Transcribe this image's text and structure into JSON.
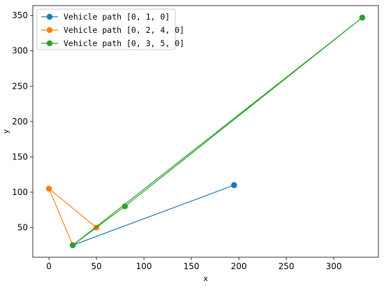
{
  "chart_data": {
    "type": "line",
    "title": "",
    "xlabel": "x",
    "ylabel": "y",
    "xlim": [
      -17,
      347
    ],
    "ylim": [
      8,
      364
    ],
    "xticks": [
      0,
      50,
      100,
      150,
      200,
      250,
      300
    ],
    "yticks": [
      50,
      100,
      150,
      200,
      250,
      300,
      350
    ],
    "grid": false,
    "legend_position": "top-left",
    "series": [
      {
        "name": "Vehicle path [0, 1, 0]",
        "color": "#1f77b4",
        "points": [
          [
            195,
            110
          ],
          [
            25,
            25
          ],
          [
            195,
            110
          ]
        ]
      },
      {
        "name": "Vehicle path [0, 2, 4, 0]",
        "color": "#ff7f0e",
        "points": [
          [
            0,
            105
          ],
          [
            25,
            25
          ],
          [
            50,
            50
          ],
          [
            0,
            105
          ]
        ]
      },
      {
        "name": "Vehicle path [0, 3, 5, 0]",
        "color": "#2ca02c",
        "points": [
          [
            330,
            347
          ],
          [
            25,
            25
          ],
          [
            80,
            80
          ],
          [
            330,
            347
          ]
        ]
      }
    ]
  }
}
